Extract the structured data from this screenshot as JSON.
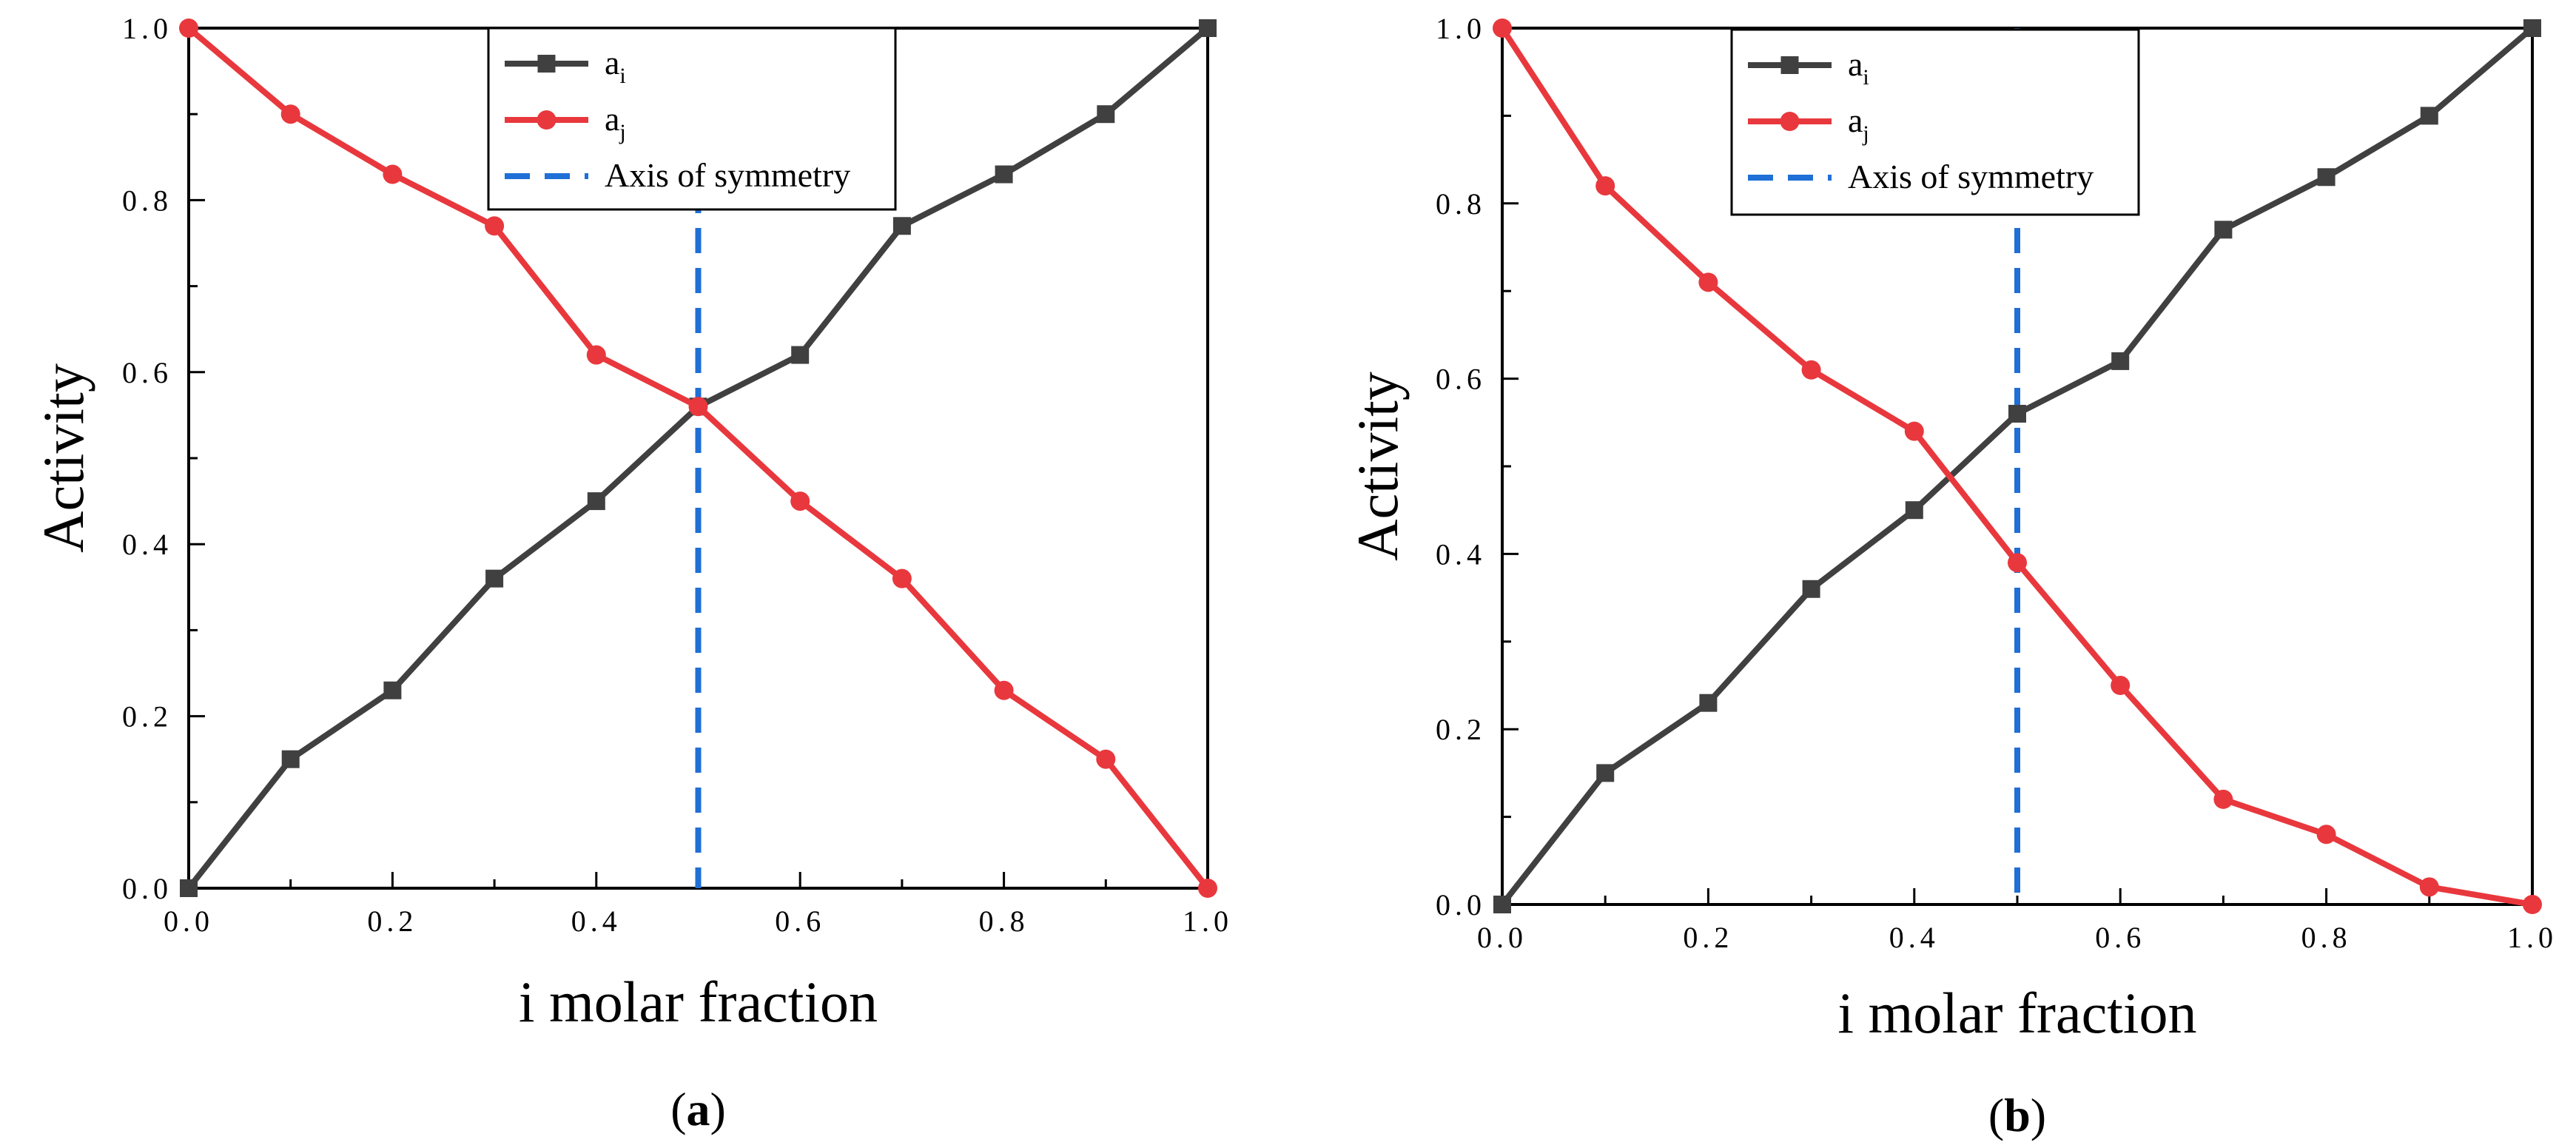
{
  "chart_data": [
    {
      "type": "line",
      "panel_label": "(a)",
      "panel_letter": "a",
      "xlabel": "i molar fraction",
      "ylabel": "Activity",
      "xlim": [
        0,
        1
      ],
      "ylim": [
        0,
        1
      ],
      "xticks": [
        "0.0",
        "0.2",
        "0.4",
        "0.6",
        "0.8",
        "1.0"
      ],
      "yticks": [
        "0.0",
        "0.2",
        "0.4",
        "0.6",
        "0.8",
        "1.0"
      ],
      "x": [
        0,
        0.1,
        0.2,
        0.3,
        0.4,
        0.5,
        0.6,
        0.7,
        0.8,
        0.9,
        1.0
      ],
      "series": [
        {
          "name": "a",
          "sub": "i",
          "color": "#404040",
          "marker": "square",
          "values": [
            0,
            0.15,
            0.23,
            0.36,
            0.45,
            0.56,
            0.62,
            0.77,
            0.83,
            0.9,
            1.0
          ]
        },
        {
          "name": "a",
          "sub": "j",
          "color": "#e8383d",
          "marker": "circle",
          "values": [
            1.0,
            0.9,
            0.83,
            0.77,
            0.62,
            0.56,
            0.45,
            0.36,
            0.23,
            0.15,
            0
          ]
        }
      ],
      "symmetry": {
        "label": "Axis of symmetry",
        "x": 0.5,
        "color": "#1f6fd6"
      },
      "legend_position": "top-center"
    },
    {
      "type": "line",
      "panel_label": "(b)",
      "panel_letter": "b",
      "xlabel": "i molar fraction",
      "ylabel": "Activity",
      "xlim": [
        0,
        1
      ],
      "ylim": [
        0,
        1
      ],
      "xticks": [
        "0.0",
        "0.2",
        "0.4",
        "0.6",
        "0.8",
        "1.0"
      ],
      "yticks": [
        "0.0",
        "0.2",
        "0.4",
        "0.6",
        "0.8",
        "1.0"
      ],
      "x": [
        0,
        0.1,
        0.2,
        0.3,
        0.4,
        0.5,
        0.6,
        0.7,
        0.8,
        0.9,
        1.0
      ],
      "series": [
        {
          "name": "a",
          "sub": "i",
          "color": "#404040",
          "marker": "square",
          "values": [
            0,
            0.15,
            0.23,
            0.36,
            0.45,
            0.56,
            0.62,
            0.77,
            0.83,
            0.9,
            1.0
          ]
        },
        {
          "name": "a",
          "sub": "j",
          "color": "#e8383d",
          "marker": "circle",
          "values": [
            1.0,
            0.82,
            0.71,
            0.61,
            0.54,
            0.39,
            0.25,
            0.12,
            0.08,
            0.02,
            0
          ]
        }
      ],
      "symmetry": {
        "label": "Axis of symmetry",
        "x": 0.5,
        "color": "#1f6fd6"
      },
      "legend_position": "top-center"
    }
  ]
}
